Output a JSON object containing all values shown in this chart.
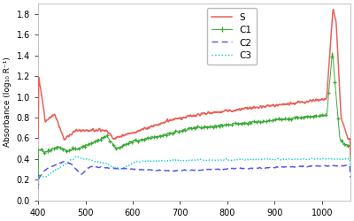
{
  "title": "",
  "xlabel": "",
  "ylabel": "Absorbance (log₁₀ R⁻¹)",
  "xlim": [
    400,
    1060
  ],
  "ylim": [
    0,
    1.9
  ],
  "yticks": [
    0,
    0.2,
    0.4,
    0.6,
    0.8,
    1.0,
    1.2,
    1.4,
    1.6,
    1.8
  ],
  "xticks": [
    400,
    500,
    600,
    700,
    800,
    900,
    1000
  ],
  "legend_labels": [
    "S",
    "C1",
    "C2",
    "C3"
  ],
  "colors": {
    "S": "#e8625a",
    "C1": "#3aaa35",
    "C2": "#5555ee",
    "C3": "#00cccc"
  },
  "background_color": "#ffffff"
}
